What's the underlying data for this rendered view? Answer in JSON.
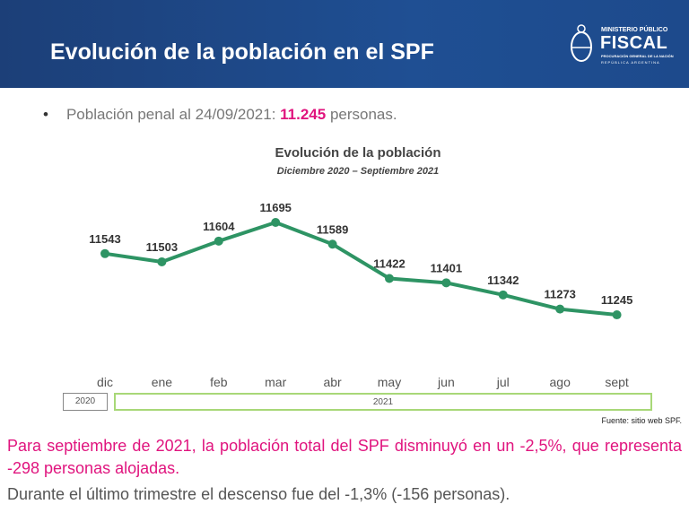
{
  "header": {
    "title": "Evolución de la población en el SPF",
    "logo": {
      "line1": "MINISTERIO PÚBLICO",
      "line2": "FISCAL",
      "line3": "PROCURACIÓN GENERAL DE LA NACIÓN",
      "line4": "REPÚBLICA ARGENTINA"
    }
  },
  "bullet": {
    "prefix": "Población penal al 24/09/2021:",
    "value": "11.245",
    "suffix": "personas."
  },
  "chart_data": {
    "type": "line",
    "title": "Evolución de la población",
    "subtitle": "Diciembre 2020 – Septiembre 2021",
    "categories": [
      "dic",
      "ene",
      "feb",
      "mar",
      "abr",
      "may",
      "jun",
      "jul",
      "ago",
      "sept"
    ],
    "values": [
      11543,
      11503,
      11604,
      11695,
      11589,
      11422,
      11401,
      11342,
      11273,
      11245
    ],
    "year_groups": [
      "2020",
      "2021"
    ],
    "line_color": "#2e9464",
    "source": "Fuente: sitio web SPF."
  },
  "highlight": "Para septiembre de 2021, la población total del SPF disminuyó en un -2,5%, que representa -298 personas alojadas.",
  "last_line": "Durante el último trimestre el descenso fue del -1,3% (-156 personas)."
}
